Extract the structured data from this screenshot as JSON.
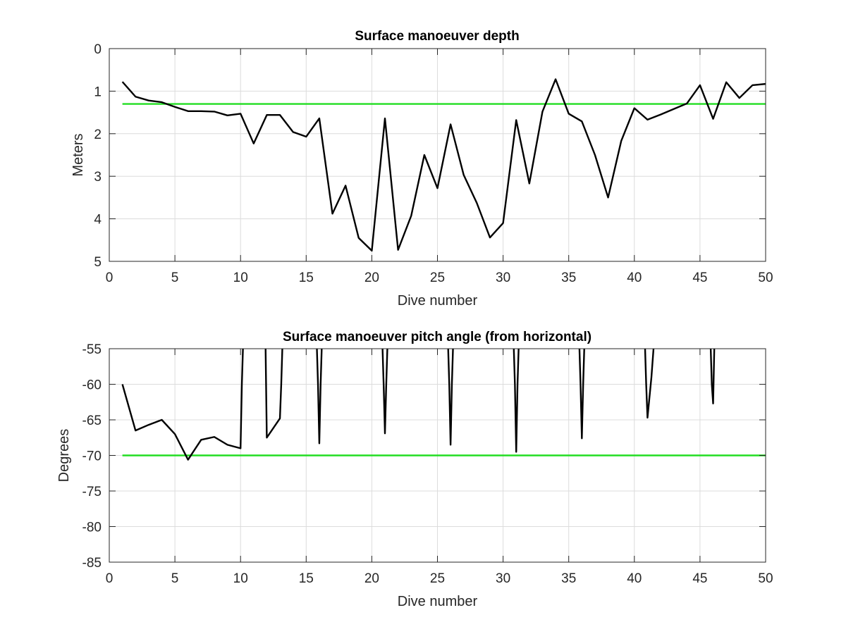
{
  "chart_data": [
    {
      "type": "line",
      "title": "Surface manoeuver depth",
      "xlabel": "Dive number",
      "ylabel": "Meters",
      "xlim": [
        0,
        50
      ],
      "ylim": [
        0,
        5
      ],
      "y_reversed": true,
      "xticks": [
        0,
        5,
        10,
        15,
        20,
        25,
        30,
        35,
        40,
        45,
        50
      ],
      "yticks": [
        0,
        1,
        2,
        3,
        4,
        5
      ],
      "grid": true,
      "series": [
        {
          "color": "#000000",
          "x": [
            1,
            2,
            3,
            4,
            5,
            6,
            7,
            8,
            9,
            10,
            11,
            12,
            13,
            14,
            15,
            16,
            17,
            18,
            19,
            20,
            21,
            22,
            23,
            24,
            25,
            26,
            27,
            28,
            29,
            30,
            31,
            32,
            33,
            34,
            35,
            36,
            37,
            38,
            39,
            40,
            41,
            42,
            43,
            44,
            45,
            46,
            47,
            48,
            49,
            50
          ],
          "y": [
            0.78,
            1.13,
            1.22,
            1.26,
            1.37,
            1.47,
            1.47,
            1.48,
            1.57,
            1.53,
            2.23,
            1.56,
            1.56,
            1.96,
            2.07,
            1.64,
            3.88,
            3.22,
            4.45,
            4.75,
            1.64,
            4.73,
            3.93,
            2.5,
            3.28,
            1.78,
            2.97,
            3.63,
            4.44,
            4.1,
            1.68,
            3.17,
            1.48,
            0.72,
            1.53,
            1.71,
            2.5,
            3.5,
            2.17,
            1.4,
            1.67,
            1.55,
            1.42,
            1.29,
            0.86,
            1.65,
            0.79,
            1.16,
            0.86,
            0.83
          ]
        },
        {
          "color": "#22dd22",
          "x": [
            1,
            50
          ],
          "y": [
            1.3,
            1.3
          ]
        }
      ]
    },
    {
      "type": "line",
      "title": "Surface manoeuver pitch angle (from horizontal)",
      "xlabel": "Dive number",
      "ylabel": "Degrees",
      "xlim": [
        0,
        50
      ],
      "ylim": [
        -85,
        -55
      ],
      "xticks": [
        0,
        5,
        10,
        15,
        20,
        25,
        30,
        35,
        40,
        45,
        50
      ],
      "yticks": [
        -55,
        -60,
        -65,
        -70,
        -75,
        -80,
        -85
      ],
      "grid": true,
      "series": [
        {
          "color": "#000000",
          "x": [
            1,
            2,
            3,
            4,
            5,
            6,
            7,
            8,
            9,
            10,
            10.1,
            10.2,
            11.9,
            12,
            13,
            13.1,
            13.2,
            15.8,
            15.9,
            16,
            16.1,
            16.2,
            20.8,
            20.9,
            21,
            21.1,
            21.2,
            25.8,
            25.9,
            26,
            26.1,
            26.2,
            30.8,
            30.9,
            31,
            31.1,
            31.2,
            35.8,
            35.9,
            36,
            36.1,
            36.2,
            40.8,
            40.9,
            41,
            41.3,
            41.5,
            45.8,
            45.9,
            46,
            46.1
          ],
          "y": [
            -60,
            -66.5,
            -65.7,
            -65,
            -67,
            -70.6,
            -67.8,
            -67.4,
            -68.5,
            -69,
            -60,
            -54,
            -54,
            -67.5,
            -64.8,
            -60,
            -54,
            -54,
            -60,
            -68.3,
            -60,
            -54,
            -54,
            -60,
            -66.9,
            -60,
            -54,
            -54,
            -60,
            -68.5,
            -60,
            -54,
            -54,
            -60,
            -69.5,
            -60,
            -54,
            -54,
            -60,
            -67.6,
            -60,
            -54,
            -54,
            -60,
            -64.7,
            -59,
            -54,
            -54,
            -60,
            -62.7,
            -54
          ]
        },
        {
          "color": "#22dd22",
          "x": [
            1,
            50
          ],
          "y": [
            -70,
            -70
          ]
        }
      ]
    }
  ]
}
